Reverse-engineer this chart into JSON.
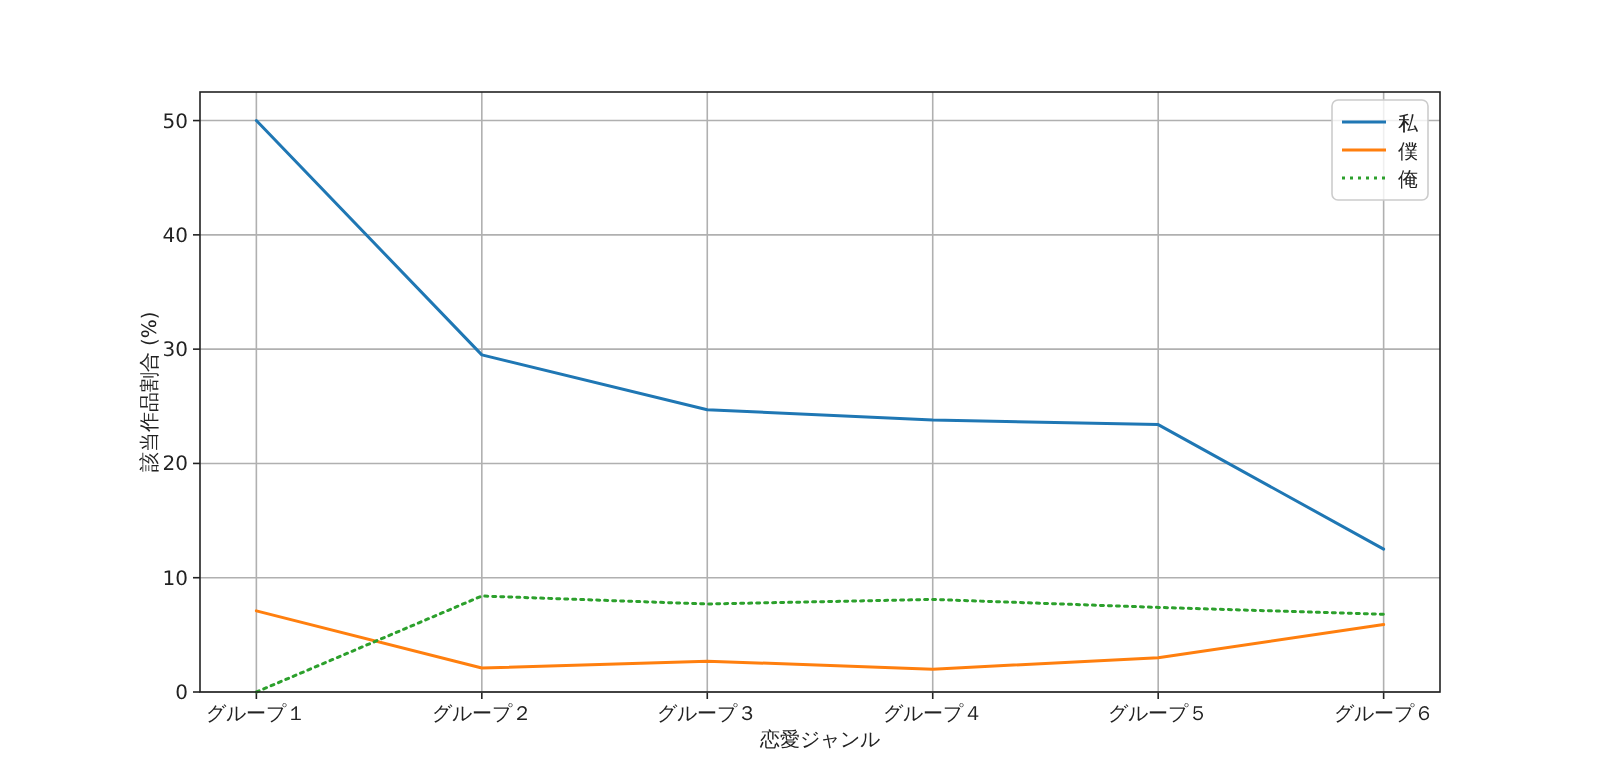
{
  "chart_data": {
    "type": "line",
    "xlabel": "恋愛ジャンル",
    "ylabel": "該当作品割合 (%)",
    "categories": [
      "グループ１",
      "グループ２",
      "グループ３",
      "グループ４",
      "グループ５",
      "グループ６"
    ],
    "series": [
      {
        "name": "私",
        "color": "#1f77b4",
        "line_style": "solid",
        "values": [
          50,
          29.5,
          24.7,
          23.8,
          23.4,
          12.5
        ]
      },
      {
        "name": "僕",
        "color": "#ff7f0e",
        "line_style": "solid",
        "values": [
          7.1,
          2.1,
          2.7,
          2.0,
          3.0,
          5.9
        ]
      },
      {
        "name": "俺",
        "color": "#2ca02c",
        "line_style": "dotted",
        "values": [
          0,
          8.4,
          7.7,
          8.1,
          7.4,
          6.8
        ]
      }
    ],
    "ylim": [
      0,
      52.5
    ],
    "yticks": [
      0,
      10,
      20,
      30,
      40,
      50
    ],
    "grid": true,
    "legend": "top right"
  }
}
